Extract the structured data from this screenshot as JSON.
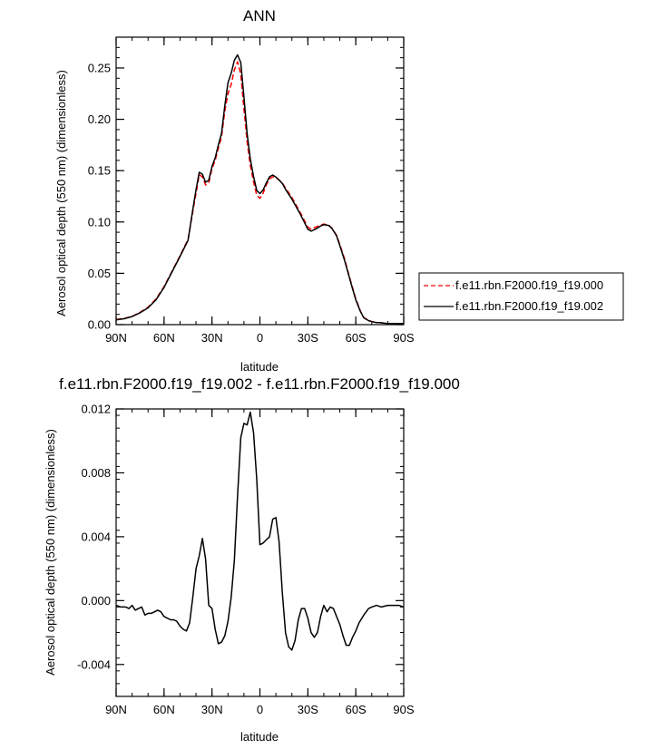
{
  "chart_data": [
    {
      "type": "line",
      "title": "ANN",
      "xlabel": "latitude",
      "ylabel": "Aerosol optical depth (550 nm) (dimensionless)",
      "xlim": [
        90,
        -90
      ],
      "ylim": [
        0,
        0.28
      ],
      "x_ticks": [
        90,
        60,
        30,
        0,
        -30,
        -60,
        -90
      ],
      "x_tick_labels": [
        "90N",
        "60N",
        "30N",
        "0",
        "30S",
        "60S",
        "90S"
      ],
      "y_ticks": [
        0,
        0.05,
        0.1,
        0.15,
        0.2,
        0.25
      ],
      "y_tick_labels": [
        "0.00",
        "0.05",
        "0.10",
        "0.15",
        "0.20",
        "0.25"
      ],
      "legend_position": "right",
      "series": [
        {
          "name": "f.e11.rbn.F2000.f19_f19.000",
          "color": "#ff0000",
          "dash": "dashed",
          "x": [
            90,
            85,
            80,
            75,
            70,
            65,
            60,
            55,
            50,
            45,
            42,
            40,
            38,
            36,
            34,
            32,
            30,
            28,
            26,
            24,
            22,
            20,
            18,
            16,
            14,
            12,
            10,
            8,
            6,
            4,
            2,
            0,
            -2,
            -4,
            -6,
            -8,
            -10,
            -12,
            -14,
            -16,
            -20,
            -25,
            -30,
            -32,
            -35,
            -38,
            -40,
            -43,
            -45,
            -48,
            -50,
            -53,
            -55,
            -58,
            -60,
            -63,
            -65,
            -68,
            -70,
            -73,
            -75,
            -80,
            -85,
            -90
          ],
          "y": [
            0.005,
            0.006,
            0.008,
            0.012,
            0.017,
            0.025,
            0.037,
            0.052,
            0.067,
            0.083,
            0.11,
            0.128,
            0.146,
            0.144,
            0.136,
            0.138,
            0.152,
            0.16,
            0.172,
            0.183,
            0.208,
            0.225,
            0.234,
            0.248,
            0.256,
            0.244,
            0.21,
            0.178,
            0.155,
            0.139,
            0.126,
            0.123,
            0.128,
            0.136,
            0.142,
            0.144,
            0.143,
            0.141,
            0.138,
            0.133,
            0.124,
            0.11,
            0.095,
            0.093,
            0.095,
            0.097,
            0.098,
            0.097,
            0.094,
            0.087,
            0.078,
            0.064,
            0.052,
            0.036,
            0.025,
            0.013,
            0.007,
            0.004,
            0.003,
            0.002,
            0.002,
            0.001,
            0.001,
            0.001
          ]
        },
        {
          "name": "f.e11.rbn.F2000.f19_f19.002",
          "color": "#000000",
          "dash": "solid",
          "x": [
            90,
            85,
            80,
            75,
            70,
            65,
            60,
            55,
            50,
            45,
            42,
            40,
            38,
            36,
            34,
            32,
            30,
            28,
            26,
            24,
            22,
            20,
            18,
            16,
            14,
            12,
            10,
            8,
            6,
            4,
            2,
            0,
            -2,
            -4,
            -6,
            -8,
            -10,
            -12,
            -14,
            -16,
            -20,
            -25,
            -30,
            -32,
            -35,
            -38,
            -40,
            -43,
            -45,
            -48,
            -50,
            -53,
            -55,
            -58,
            -60,
            -63,
            -65,
            -68,
            -70,
            -73,
            -75,
            -80,
            -85,
            -90
          ],
          "y": [
            0.0047,
            0.0057,
            0.0079,
            0.0116,
            0.0163,
            0.0242,
            0.0362,
            0.0513,
            0.0663,
            0.0822,
            0.1119,
            0.1315,
            0.1484,
            0.1465,
            0.1387,
            0.1406,
            0.1541,
            0.1625,
            0.1751,
            0.1863,
            0.2133,
            0.2356,
            0.2448,
            0.2575,
            0.2628,
            0.2553,
            0.2215,
            0.1859,
            0.1613,
            0.1442,
            0.1306,
            0.1276,
            0.1312,
            0.138,
            0.1441,
            0.1457,
            0.1438,
            0.1408,
            0.1375,
            0.1318,
            0.1223,
            0.1085,
            0.0929,
            0.0911,
            0.0931,
            0.0961,
            0.0974,
            0.0966,
            0.0938,
            0.0865,
            0.0769,
            0.0625,
            0.0513,
            0.0349,
            0.0241,
            0.0125,
            0.0066,
            0.0039,
            0.0029,
            0.0019,
            0.002,
            0.001,
            0.001,
            0.001
          ]
        }
      ]
    },
    {
      "type": "line",
      "title": "f.e11.rbn.F2000.f19_f19.002 - f.e11.rbn.F2000.f19_f19.000",
      "xlabel": "latitude",
      "ylabel": "Aerosol optical depth (550 nm) (dimensionless)",
      "xlim": [
        90,
        -90
      ],
      "ylim": [
        -0.006,
        0.012
      ],
      "x_ticks": [
        90,
        60,
        30,
        0,
        -30,
        -60,
        -90
      ],
      "x_tick_labels": [
        "90N",
        "60N",
        "30N",
        "0",
        "30S",
        "60S",
        "90S"
      ],
      "y_ticks": [
        -0.004,
        0.0,
        0.004,
        0.008,
        0.012
      ],
      "y_tick_labels": [
        "-0.004",
        "0.000",
        "0.004",
        "0.008",
        "0.012"
      ],
      "series": [
        {
          "color": "#000000",
          "x": [
            90,
            87,
            84,
            82,
            80,
            78,
            76,
            74,
            72,
            70,
            68,
            66,
            64,
            62,
            60,
            58,
            56,
            54,
            52,
            50,
            48,
            46,
            44,
            42,
            40,
            38,
            36,
            34,
            32,
            30,
            28,
            26,
            24,
            22,
            20,
            18,
            16,
            14,
            12,
            10,
            8,
            6,
            4,
            2,
            0,
            -2,
            -4,
            -6,
            -8,
            -10,
            -12,
            -14,
            -16,
            -18,
            -20,
            -22,
            -24,
            -26,
            -28,
            -30,
            -32,
            -34,
            -36,
            -38,
            -40,
            -42,
            -44,
            -46,
            -48,
            -50,
            -52,
            -54,
            -56,
            -58,
            -60,
            -62,
            -65,
            -68,
            -70,
            -73,
            -76,
            -80,
            -84,
            -87,
            -90
          ],
          "y": [
            -0.0003,
            -0.0004,
            -0.0004,
            -0.0005,
            -0.0003,
            -0.0006,
            -0.0005,
            -0.0004,
            -0.0009,
            -0.0008,
            -0.0008,
            -0.0007,
            -0.0006,
            -0.0007,
            -0.001,
            -0.0011,
            -0.0012,
            -0.0012,
            -0.0013,
            -0.0016,
            -0.0018,
            -0.0019,
            -0.0014,
            0.0002,
            0.002,
            0.0028,
            0.0039,
            0.0026,
            -0.0003,
            -0.0005,
            -0.0018,
            -0.0027,
            -0.0026,
            -0.0022,
            -0.0013,
            0.0002,
            0.0025,
            0.0065,
            0.0102,
            0.0111,
            0.011,
            0.0118,
            0.0105,
            0.0076,
            0.0035,
            0.0036,
            0.0038,
            0.004,
            0.0051,
            0.0052,
            0.0037,
            0.0005,
            -0.002,
            -0.0029,
            -0.0031,
            -0.0025,
            -0.0012,
            -0.0005,
            -0.0005,
            -0.0011,
            -0.002,
            -0.0023,
            -0.002,
            -0.001,
            -0.0003,
            -0.0007,
            -0.0004,
            -0.0005,
            -0.001,
            -0.0015,
            -0.0022,
            -0.0028,
            -0.0028,
            -0.0023,
            -0.0019,
            -0.0014,
            -0.0009,
            -0.0005,
            -0.0004,
            -0.0003,
            -0.0004,
            -0.0003,
            -0.0003,
            -0.0003,
            -0.0004
          ]
        }
      ]
    }
  ]
}
